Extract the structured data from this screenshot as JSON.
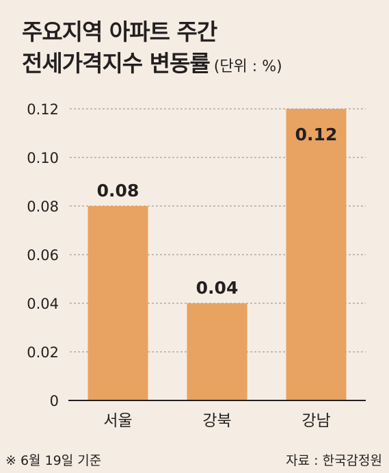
{
  "title_line1": "주요지역 아파트 주간",
  "title_line2": "전세가격지수 변동률",
  "unit_label": "(단위 : %)",
  "footnote": "※ 6월 19일 기준",
  "source": "자료 : 한국감정원",
  "colors": {
    "bar": "#e8a261",
    "background": "#f5ede3",
    "grid": "#8a8a8a",
    "text": "#231f20"
  },
  "chart_data": {
    "type": "bar",
    "title": "주요지역 아파트 주간 전세가격지수 변동률",
    "ylabel": "(단위 : %)",
    "categories": [
      "서울",
      "강북",
      "강남"
    ],
    "values": [
      0.08,
      0.04,
      0.12
    ],
    "value_labels": [
      "0.08",
      "0.04",
      "0.12"
    ],
    "yticks": [
      "0",
      "0.02",
      "0.04",
      "0.06",
      "0.08",
      "0.10",
      "0.12"
    ],
    "ylim": [
      0,
      0.12
    ],
    "grid": true,
    "legend": "none"
  }
}
